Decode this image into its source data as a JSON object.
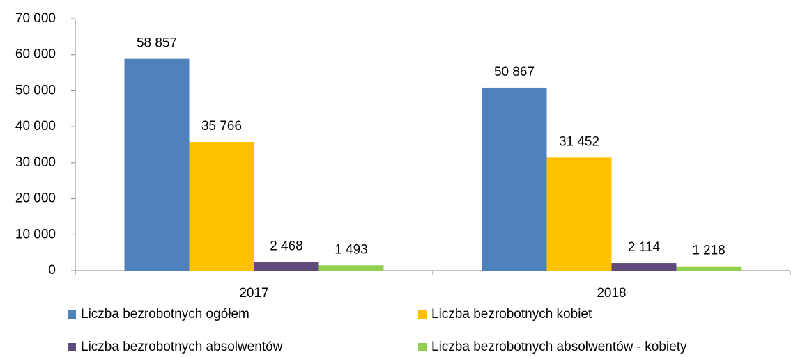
{
  "chart_data": {
    "type": "bar",
    "categories": [
      "2017",
      "2018"
    ],
    "series": [
      {
        "name": "Liczba bezrobotnych ogółem",
        "color": "#4f81bd",
        "values": [
          58857,
          50867
        ],
        "value_labels": [
          "58 857",
          "50 867"
        ]
      },
      {
        "name": "Liczba bezrobotnych kobiet",
        "color": "#ffc000",
        "values": [
          35766,
          31452
        ],
        "value_labels": [
          "35 766",
          "31 452"
        ]
      },
      {
        "name": "Liczba bezrobotnych absolwentów",
        "color": "#604a7b",
        "values": [
          2468,
          2114
        ],
        "value_labels": [
          "2 468",
          "2 114"
        ]
      },
      {
        "name": "Liczba bezrobotnych absolwentów - kobiety",
        "color": "#92d050",
        "values": [
          1493,
          1218
        ],
        "value_labels": [
          "1 493",
          "1 218"
        ]
      }
    ],
    "ylim": [
      0,
      70000
    ],
    "yticks": [
      0,
      {
        "value": 10000,
        "label": "10 000"
      },
      {
        "value": 20000,
        "label": "20 000"
      },
      {
        "value": 30000,
        "label": "30 000"
      },
      {
        "value": 40000,
        "label": "40 000"
      },
      {
        "value": 50000,
        "label": "50 000"
      },
      {
        "value": 60000,
        "label": "60 000"
      },
      {
        "value": 70000,
        "label": "70 000"
      }
    ],
    "grid": false,
    "legend": "bottom"
  }
}
